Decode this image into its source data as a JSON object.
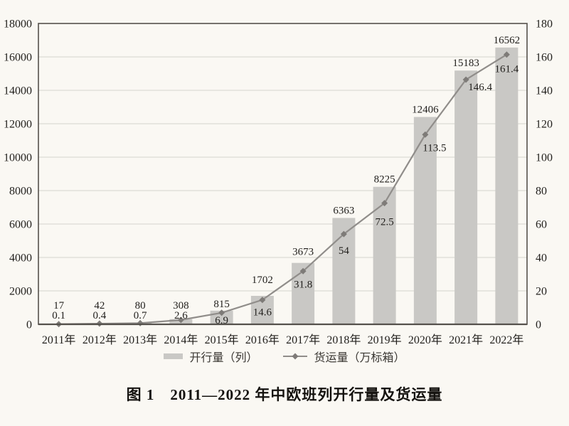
{
  "figure": {
    "caption": "图 1　2011—2022 年中欧班列开行量及货运量"
  },
  "legend": {
    "bars_label": "开行量（列）",
    "line_label": "货运量（万标箱）"
  },
  "chart_data": {
    "type": "combo",
    "title": "图 1　2011—2022 年中欧班列开行量及货运量",
    "categories": [
      "2011年",
      "2012年",
      "2013年",
      "2014年",
      "2015年",
      "2016年",
      "2017年",
      "2018年",
      "2019年",
      "2020年",
      "2021年",
      "2022年"
    ],
    "series": [
      {
        "name": "开行量（列）",
        "type": "bar",
        "axis": "left",
        "values": [
          17,
          42,
          80,
          308,
          815,
          1702,
          3673,
          6363,
          8225,
          12406,
          15183,
          16562
        ]
      },
      {
        "name": "货运量（万标箱）",
        "type": "line",
        "axis": "right",
        "values": [
          0.1,
          0.4,
          0.7,
          2.6,
          6.9,
          14.6,
          31.8,
          54,
          72.5,
          113.5,
          146.4,
          161.4
        ]
      }
    ],
    "left_axis": {
      "min": 0,
      "max": 18000,
      "step": 2000,
      "tick_labels": [
        "0",
        "2000",
        "4000",
        "6000",
        "8000",
        "10000",
        "12000",
        "14000",
        "16000",
        "18000"
      ]
    },
    "right_axis": {
      "min": 0,
      "max": 180,
      "step": 20,
      "tick_labels": [
        "0",
        "20",
        "40",
        "60",
        "80",
        "100",
        "120",
        "140",
        "160",
        "180"
      ]
    },
    "grid": true,
    "legend_position": "bottom",
    "xlabel": "",
    "ylabel": "",
    "colors": {
      "background": "#faf8f3",
      "bar": "#c9c8c5",
      "line": "#908d8a",
      "marker": "#7e7b78",
      "frame": "#55514c",
      "gridline": "#dcdad5",
      "text": "#211f1c"
    }
  }
}
